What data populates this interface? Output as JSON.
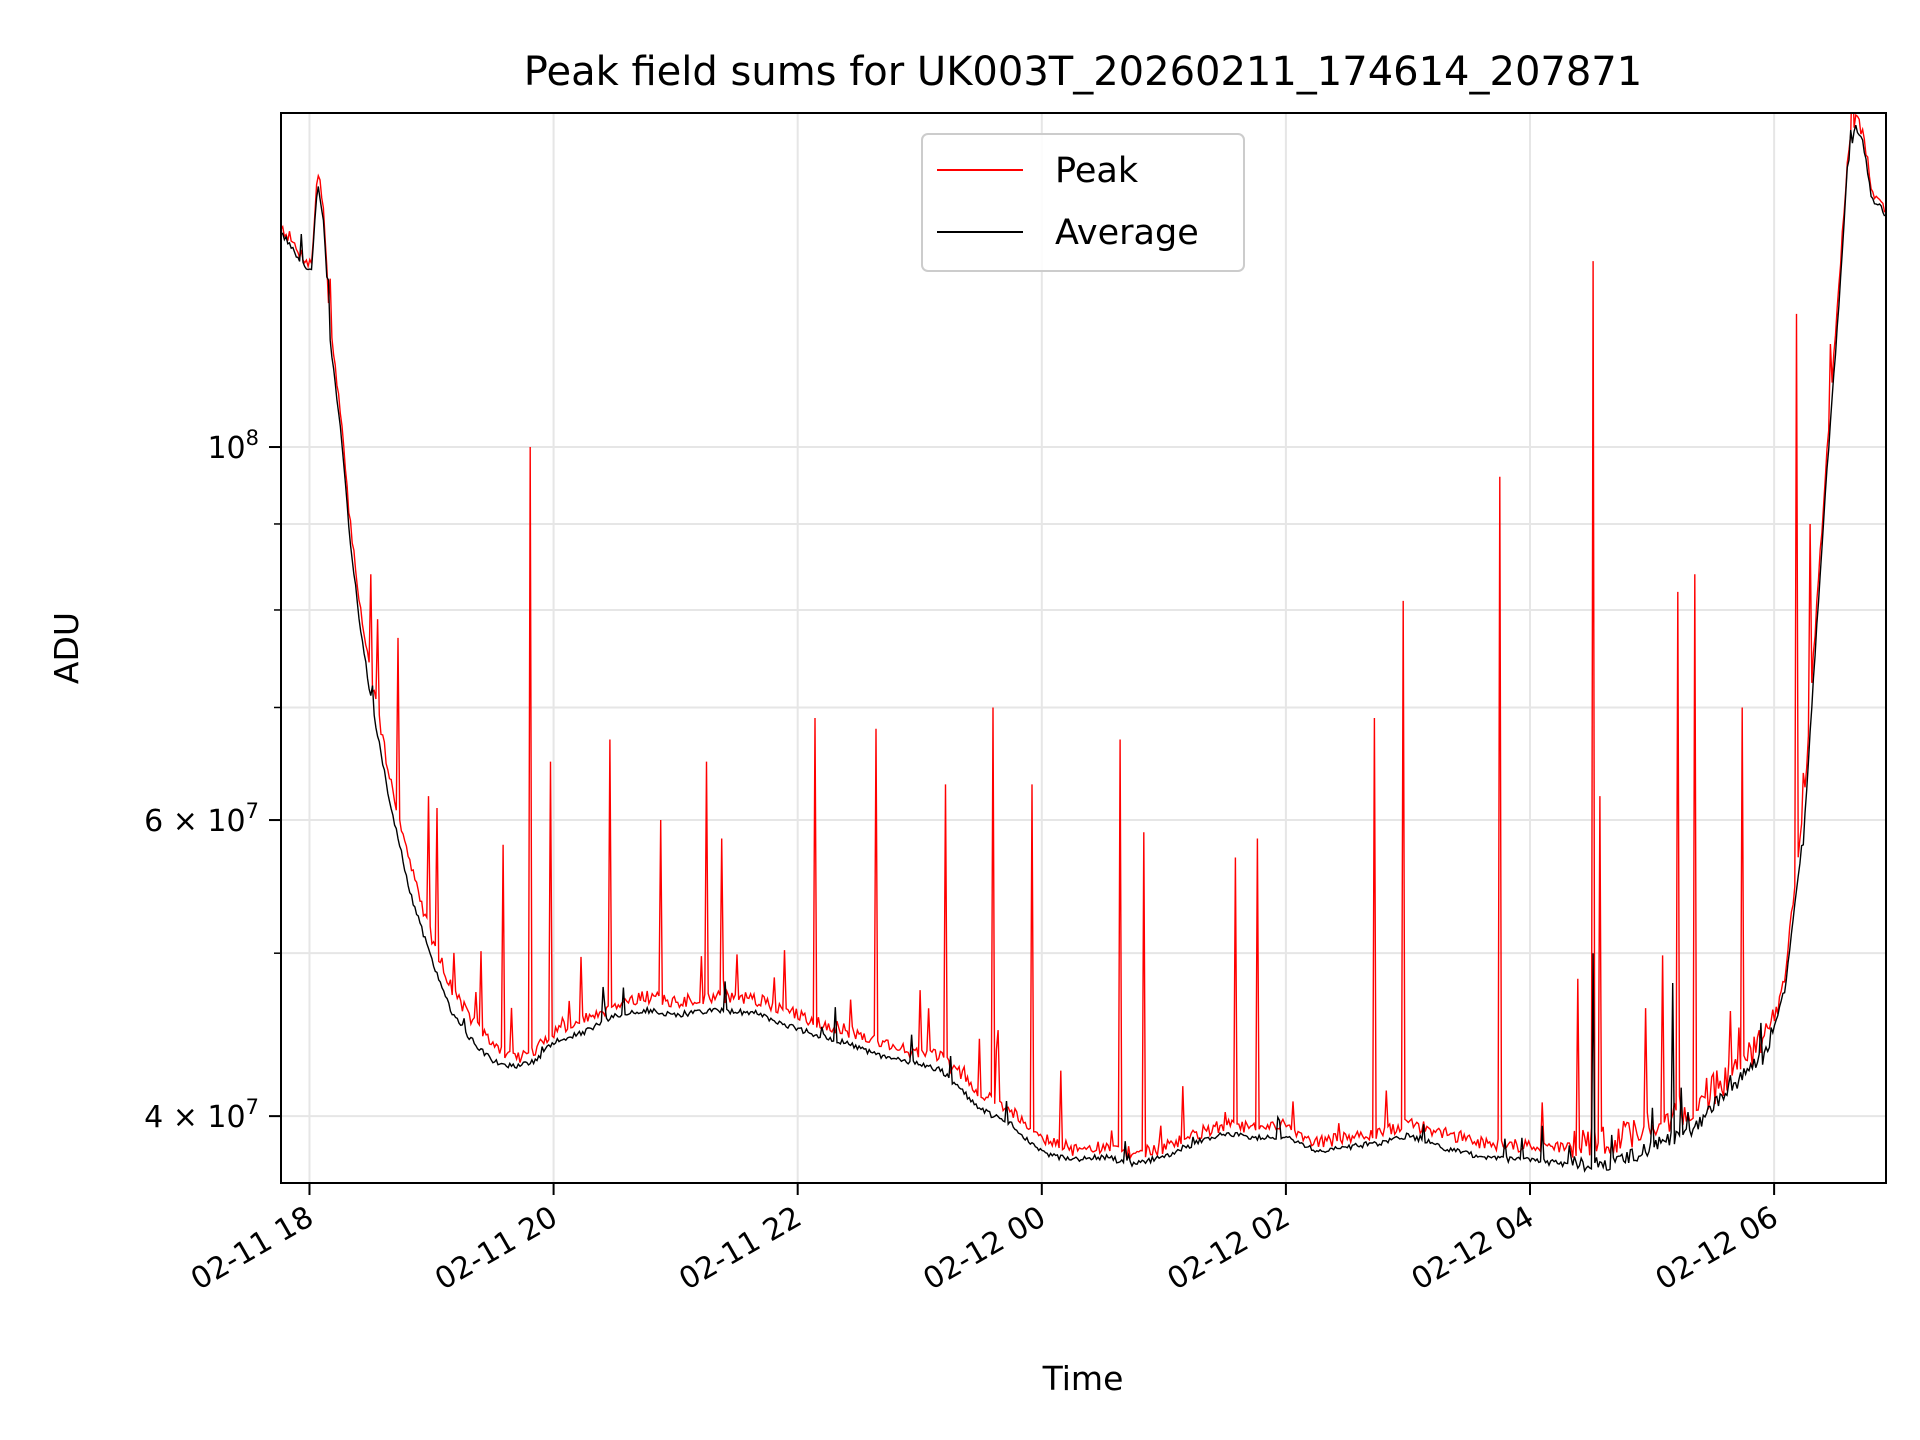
{
  "chart_data": {
    "type": "line",
    "title": "Peak field sums for UK003T_20260211_174614_207871",
    "xlabel": "Time",
    "ylabel": "ADU",
    "y_scale": "log",
    "ylim": [
      36500000,
      158000000
    ],
    "xlim": [
      "2026-02-11T17:46",
      "2026-02-12T06:55"
    ],
    "grid": true,
    "legend_placement": "upper-center",
    "x_ticks": [
      {
        "t": "2026-02-11T18:00",
        "label": "02-11 18"
      },
      {
        "t": "2026-02-11T20:00",
        "label": "02-11 20"
      },
      {
        "t": "2026-02-11T22:00",
        "label": "02-11 22"
      },
      {
        "t": "2026-02-12T00:00",
        "label": "02-12 00"
      },
      {
        "t": "2026-02-12T02:00",
        "label": "02-12 02"
      },
      {
        "t": "2026-02-12T04:00",
        "label": "02-12 04"
      },
      {
        "t": "2026-02-12T06:00",
        "label": "02-12 06"
      }
    ],
    "y_ticks_major": [
      {
        "v": 40000000,
        "label": "4 × 10",
        "exp": "7"
      },
      {
        "v": 60000000,
        "label": "6 × 10",
        "exp": "7"
      },
      {
        "v": 100000000,
        "label": "10",
        "exp": "8"
      }
    ],
    "y_ticks_minor": [
      50000000,
      70000000,
      80000000,
      90000000
    ],
    "series": [
      {
        "name": "Peak",
        "color": "#ff0000",
        "baseline": [
          [
            "2026-02-11T17:46",
            135000000
          ],
          [
            "2026-02-11T17:50",
            133000000
          ],
          [
            "2026-02-11T17:53",
            131000000
          ],
          [
            "2026-02-11T18:01",
            128000000
          ],
          [
            "2026-02-11T18:04",
            146000000
          ],
          [
            "2026-02-11T18:07",
            138000000
          ],
          [
            "2026-02-11T18:10",
            118000000
          ],
          [
            "2026-02-11T18:15",
            105000000
          ],
          [
            "2026-02-11T18:20",
            90000000
          ],
          [
            "2026-02-11T18:25",
            80000000
          ],
          [
            "2026-02-11T18:30",
            73000000
          ],
          [
            "2026-02-11T18:40",
            63000000
          ],
          [
            "2026-02-11T18:50",
            56000000
          ],
          [
            "2026-02-11T19:00",
            51000000
          ],
          [
            "2026-02-11T19:10",
            47500000
          ],
          [
            "2026-02-11T19:20",
            45500000
          ],
          [
            "2026-02-11T19:30",
            44000000
          ],
          [
            "2026-02-11T19:40",
            43200000
          ],
          [
            "2026-02-11T19:50",
            43500000
          ],
          [
            "2026-02-11T20:00",
            44800000
          ],
          [
            "2026-02-11T20:15",
            45500000
          ],
          [
            "2026-02-11T20:30",
            46500000
          ],
          [
            "2026-02-11T20:45",
            47000000
          ],
          [
            "2026-02-11T21:00",
            46600000
          ],
          [
            "2026-02-11T21:20",
            47000000
          ],
          [
            "2026-02-11T21:40",
            46800000
          ],
          [
            "2026-02-11T22:00",
            45800000
          ],
          [
            "2026-02-11T22:20",
            45000000
          ],
          [
            "2026-02-11T22:40",
            44200000
          ],
          [
            "2026-02-11T22:55",
            43600000
          ],
          [
            "2026-02-11T23:10",
            43300000
          ],
          [
            "2026-02-11T23:30",
            41200000
          ],
          [
            "2026-02-11T23:45",
            40200000
          ],
          [
            "2026-02-12T00:00",
            38800000
          ],
          [
            "2026-02-12T00:15",
            38100000
          ],
          [
            "2026-02-12T00:30",
            38200000
          ],
          [
            "2026-02-12T00:45",
            37900000
          ],
          [
            "2026-02-12T01:00",
            38200000
          ],
          [
            "2026-02-12T01:15",
            38900000
          ],
          [
            "2026-02-12T01:30",
            39400000
          ],
          [
            "2026-02-12T01:45",
            39200000
          ],
          [
            "2026-02-12T02:00",
            39400000
          ],
          [
            "2026-02-12T02:15",
            38500000
          ],
          [
            "2026-02-12T02:30",
            38700000
          ],
          [
            "2026-02-12T02:45",
            38900000
          ],
          [
            "2026-02-12T03:00",
            39500000
          ],
          [
            "2026-02-12T03:20",
            38900000
          ],
          [
            "2026-02-12T03:40",
            38400000
          ],
          [
            "2026-02-12T04:00",
            38300000
          ],
          [
            "2026-02-12T04:20",
            38200000
          ],
          [
            "2026-02-12T04:40",
            38400000
          ],
          [
            "2026-02-12T05:00",
            39300000
          ],
          [
            "2026-02-12T05:20",
            40200000
          ],
          [
            "2026-02-12T05:40",
            42300000
          ],
          [
            "2026-02-12T05:55",
            44000000
          ],
          [
            "2026-02-12T06:05",
            48000000
          ],
          [
            "2026-02-12T06:15",
            62000000
          ],
          [
            "2026-02-12T06:25",
            95000000
          ],
          [
            "2026-02-12T06:32",
            125000000
          ],
          [
            "2026-02-12T06:36",
            148000000
          ],
          [
            "2026-02-12T06:40",
            157000000
          ],
          [
            "2026-02-12T06:44",
            153000000
          ],
          [
            "2026-02-12T06:48",
            142000000
          ],
          [
            "2026-02-12T06:52",
            140000000
          ],
          [
            "2026-02-12T06:55",
            138000000
          ]
        ],
        "spikes": [
          [
            "2026-02-11T18:17",
            97000000
          ],
          [
            "2026-02-11T18:30",
            84000000
          ],
          [
            "2026-02-11T18:33",
            79000000
          ],
          [
            "2026-02-11T18:43",
            77000000
          ],
          [
            "2026-02-11T18:58",
            62000000
          ],
          [
            "2026-02-11T19:02",
            61000000
          ],
          [
            "2026-02-11T19:35",
            58000000
          ],
          [
            "2026-02-11T19:48",
            100000000
          ],
          [
            "2026-02-11T19:58",
            65000000
          ],
          [
            "2026-02-11T20:27",
            67000000
          ],
          [
            "2026-02-11T20:52",
            60000000
          ],
          [
            "2026-02-11T21:15",
            65000000
          ],
          [
            "2026-02-11T21:22",
            58500000
          ],
          [
            "2026-02-11T22:08",
            69000000
          ],
          [
            "2026-02-11T22:38",
            68000000
          ],
          [
            "2026-02-11T23:12",
            63000000
          ],
          [
            "2026-02-11T23:36",
            70000000
          ],
          [
            "2026-02-11T23:55",
            63000000
          ],
          [
            "2026-02-12T00:38",
            67000000
          ],
          [
            "2026-02-12T00:50",
            59000000
          ],
          [
            "2026-02-12T01:35",
            57000000
          ],
          [
            "2026-02-12T01:46",
            58500000
          ],
          [
            "2026-02-12T02:43",
            69000000
          ],
          [
            "2026-02-12T02:57",
            81000000
          ],
          [
            "2026-02-12T03:45",
            96000000
          ],
          [
            "2026-02-12T04:31",
            129000000
          ],
          [
            "2026-02-12T04:34",
            62000000
          ],
          [
            "2026-02-12T05:12",
            82000000
          ],
          [
            "2026-02-12T05:21",
            84000000
          ],
          [
            "2026-02-12T05:44",
            70000000
          ],
          [
            "2026-02-12T06:11",
            120000000
          ],
          [
            "2026-02-12T06:14",
            64000000
          ],
          [
            "2026-02-12T06:17",
            90000000
          ]
        ]
      },
      {
        "name": "Average",
        "color": "#000000",
        "baseline": [
          [
            "2026-02-11T17:46",
            134000000
          ],
          [
            "2026-02-11T17:50",
            132000000
          ],
          [
            "2026-02-11T17:53",
            130000000
          ],
          [
            "2026-02-11T18:01",
            127000000
          ],
          [
            "2026-02-11T18:04",
            144000000
          ],
          [
            "2026-02-11T18:07",
            136000000
          ],
          [
            "2026-02-11T18:10",
            116000000
          ],
          [
            "2026-02-11T18:15",
            103000000
          ],
          [
            "2026-02-11T18:20",
            88000000
          ],
          [
            "2026-02-11T18:25",
            78000000
          ],
          [
            "2026-02-11T18:30",
            71000000
          ],
          [
            "2026-02-11T18:40",
            61000000
          ],
          [
            "2026-02-11T18:50",
            54000000
          ],
          [
            "2026-02-11T19:00",
            49500000
          ],
          [
            "2026-02-11T19:10",
            46000000
          ],
          [
            "2026-02-11T19:20",
            44300000
          ],
          [
            "2026-02-11T19:30",
            43100000
          ],
          [
            "2026-02-11T19:40",
            42800000
          ],
          [
            "2026-02-11T19:50",
            43000000
          ],
          [
            "2026-02-11T20:00",
            44200000
          ],
          [
            "2026-02-11T20:15",
            44800000
          ],
          [
            "2026-02-11T20:30",
            45800000
          ],
          [
            "2026-02-11T20:45",
            46200000
          ],
          [
            "2026-02-11T21:00",
            45900000
          ],
          [
            "2026-02-11T21:20",
            46200000
          ],
          [
            "2026-02-11T21:40",
            46000000
          ],
          [
            "2026-02-11T22:00",
            45000000
          ],
          [
            "2026-02-11T22:20",
            44300000
          ],
          [
            "2026-02-11T22:40",
            43400000
          ],
          [
            "2026-02-11T22:55",
            43000000
          ],
          [
            "2026-02-11T23:10",
            42600000
          ],
          [
            "2026-02-11T23:30",
            40300000
          ],
          [
            "2026-02-11T23:45",
            39500000
          ],
          [
            "2026-02-12T00:00",
            38000000
          ],
          [
            "2026-02-12T00:15",
            37600000
          ],
          [
            "2026-02-12T00:30",
            37800000
          ],
          [
            "2026-02-12T00:45",
            37400000
          ],
          [
            "2026-02-12T01:00",
            37800000
          ],
          [
            "2026-02-12T01:15",
            38500000
          ],
          [
            "2026-02-12T01:30",
            39000000
          ],
          [
            "2026-02-12T01:45",
            38800000
          ],
          [
            "2026-02-12T02:00",
            38900000
          ],
          [
            "2026-02-12T02:15",
            38100000
          ],
          [
            "2026-02-12T02:30",
            38300000
          ],
          [
            "2026-02-12T02:45",
            38500000
          ],
          [
            "2026-02-12T03:00",
            38900000
          ],
          [
            "2026-02-12T03:20",
            38200000
          ],
          [
            "2026-02-12T03:40",
            37700000
          ],
          [
            "2026-02-12T04:00",
            37600000
          ],
          [
            "2026-02-12T04:20",
            37400000
          ],
          [
            "2026-02-12T04:40",
            37300000
          ],
          [
            "2026-02-12T05:00",
            38200000
          ],
          [
            "2026-02-12T05:20",
            39200000
          ],
          [
            "2026-02-12T05:40",
            41600000
          ],
          [
            "2026-02-12T05:55",
            43300000
          ],
          [
            "2026-02-12T06:05",
            47000000
          ],
          [
            "2026-02-12T06:15",
            60000000
          ],
          [
            "2026-02-12T06:25",
            93000000
          ],
          [
            "2026-02-12T06:32",
            122000000
          ],
          [
            "2026-02-12T06:36",
            146000000
          ],
          [
            "2026-02-12T06:40",
            155000000
          ],
          [
            "2026-02-12T06:44",
            151000000
          ],
          [
            "2026-02-12T06:48",
            140000000
          ],
          [
            "2026-02-12T06:52",
            139000000
          ],
          [
            "2026-02-12T06:55",
            137000000
          ]
        ],
        "spikes": [
          [
            "2026-02-12T04:31",
            50000000
          ],
          [
            "2026-02-12T05:10",
            48000000
          ],
          [
            "2026-02-12T06:14",
            58000000
          ]
        ]
      }
    ]
  }
}
